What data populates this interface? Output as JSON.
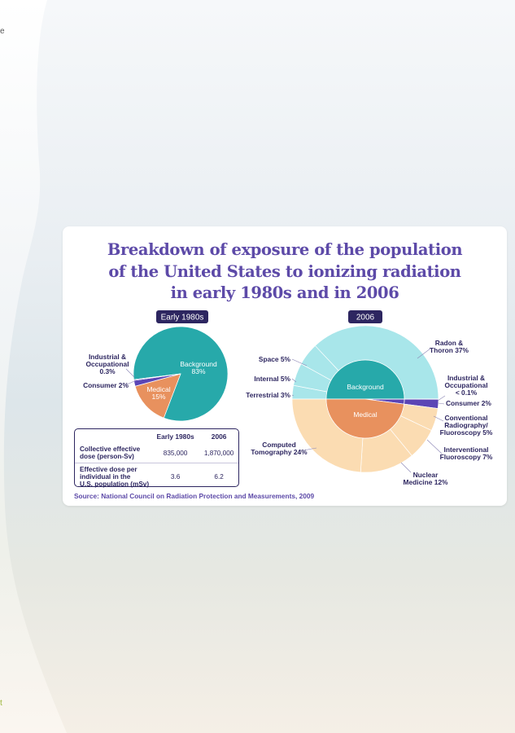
{
  "page": {
    "edge_mark_top": "e",
    "edge_mark_bottom": "t"
  },
  "colors": {
    "title": "#5d4aa8",
    "pill": "#2d2660",
    "background_dark": "#27a9aa",
    "background_light": "#a8e6ea",
    "medical_dark": "#e8915e",
    "medical_light": "#fbdcb2",
    "consumer": "#5b45b5",
    "industrial": "#5b45b5"
  },
  "card": {
    "title_lines": [
      "Breakdown of exposure of the population",
      "of the United States to ionizing radiation",
      "in early 1980s and in 2006"
    ],
    "source": "Source: National Council on Radiation Protection and Measurements, 2009"
  },
  "chart_data": [
    {
      "type": "pie",
      "title": "Early 1980s",
      "slices": [
        {
          "label": "Background",
          "value": 83,
          "display": "Background\n83%"
        },
        {
          "label": "Medical",
          "value": 15,
          "display": "Medical\n15%"
        },
        {
          "label": "Consumer",
          "value": 2,
          "display": "Consumer 2%"
        },
        {
          "label": "Industrial & Occupational",
          "value": 0.3,
          "display": "Industrial &\nOccupational\n0.3%"
        }
      ]
    },
    {
      "type": "pie",
      "title": "2006",
      "inner": [
        {
          "label": "Background",
          "value": 50
        },
        {
          "label": "Medical",
          "value": 48
        },
        {
          "label": "Consumer",
          "value": 2
        },
        {
          "label": "Industrial & Occupational",
          "value": 0.1
        }
      ],
      "outer": [
        {
          "label": "Radon & Thoron",
          "value": 37,
          "display": "Radon &\nThoron 37%",
          "group": "Background"
        },
        {
          "label": "Space",
          "value": 5,
          "display": "Space 5%",
          "group": "Background"
        },
        {
          "label": "Internal",
          "value": 5,
          "display": "Internal 5%",
          "group": "Background"
        },
        {
          "label": "Terrestrial",
          "value": 3,
          "display": "Terrestrial 3%",
          "group": "Background"
        },
        {
          "label": "Computed Tomography",
          "value": 24,
          "display": "Computed\nTomography 24%",
          "group": "Medical"
        },
        {
          "label": "Nuclear Medicine",
          "value": 12,
          "display": "Nuclear\nMedicine 12%",
          "group": "Medical"
        },
        {
          "label": "Interventional Fluoroscopy",
          "value": 7,
          "display": "Interventional\nFluoroscopy 7%",
          "group": "Medical"
        },
        {
          "label": "Conventional Radiography/ Fluoroscopy",
          "value": 5,
          "display": "Conventional\nRadiography/\nFluoroscopy 5%",
          "group": "Medical"
        },
        {
          "label": "Consumer",
          "value": 2,
          "display": "Consumer 2%",
          "group": "Consumer"
        },
        {
          "label": "Industrial & Occupational",
          "value": 0.1,
          "display": "Industrial &\nOccupational\n< 0.1%",
          "group": "Industrial & Occupational"
        }
      ],
      "inner_labels": [
        "Background",
        "Medical"
      ]
    },
    {
      "type": "table",
      "columns": [
        "",
        "Early 1980s",
        "2006"
      ],
      "rows": [
        {
          "label": "Collective effective dose (person-Sv)",
          "lines": [
            "Collective effective",
            "dose (person-Sv)"
          ],
          "values": [
            "835,000",
            "1,870,000"
          ]
        },
        {
          "label": "Effective dose per individual in the U.S. population (mSv)",
          "lines": [
            "Effective dose per",
            "individual in the",
            "U.S. population (mSv)"
          ],
          "values": [
            "3.6",
            "6.2"
          ]
        }
      ]
    }
  ]
}
